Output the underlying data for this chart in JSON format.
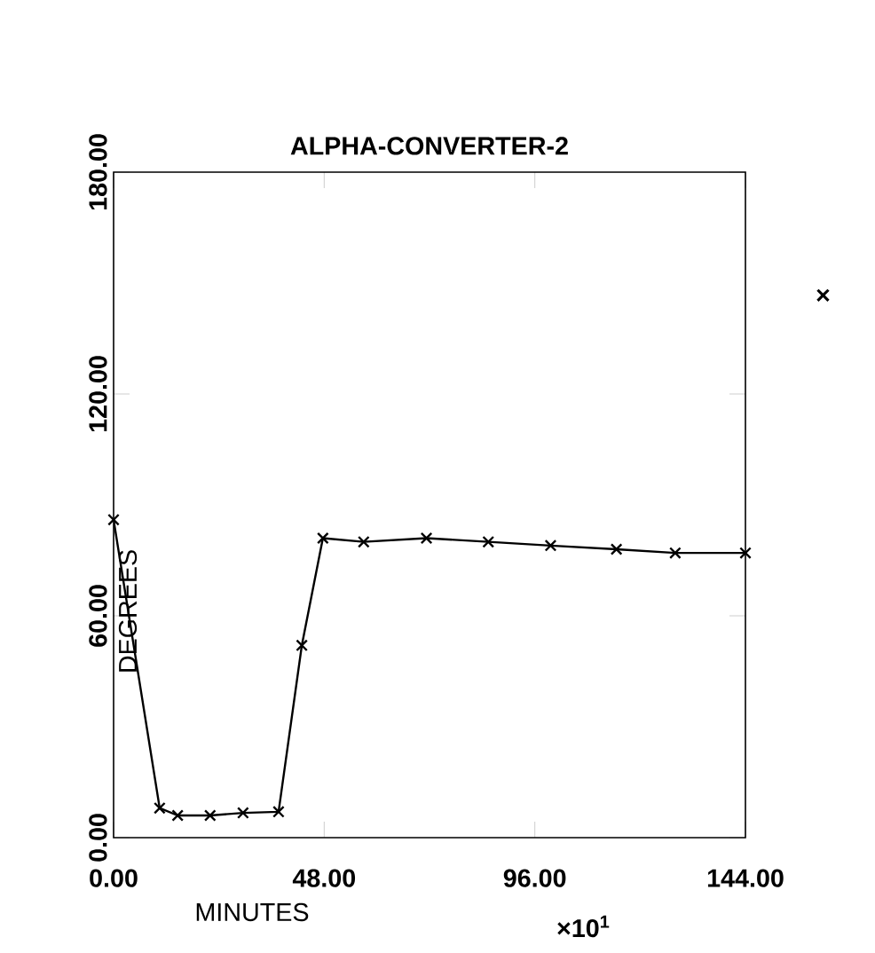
{
  "chart_data": {
    "type": "line",
    "title": "ALPHA-CONVERTER-2",
    "xlabel": "MINUTES",
    "ylabel": "DEGREES",
    "annotations": [
      "×10$^{1}$",
      "×"
    ],
    "x": [
      0,
      10.5,
      14.6,
      22,
      29.5,
      37.6,
      42.9,
      47.7,
      57,
      71.3,
      85.4,
      99.6,
      114.6,
      128,
      144
    ],
    "series": [
      {
        "color": "#000000",
        "values": [
          86,
          8,
          6,
          6,
          6.7,
          7,
          52,
          81,
          80,
          81,
          80,
          79,
          78,
          77,
          77
        ]
      }
    ],
    "xlim": [
      0,
      144
    ],
    "ylim": [
      0,
      180
    ],
    "xticks": [
      {
        "value": 0,
        "label": "0.00"
      },
      {
        "value": 48,
        "label": "48.00"
      },
      {
        "value": 96,
        "label": "96.00"
      },
      {
        "value": 144,
        "label": "144.00"
      }
    ],
    "yticks": [
      {
        "value": 0,
        "label": "0.00"
      },
      {
        "value": 60,
        "label": "60.00"
      },
      {
        "value": 120,
        "label": "120.00"
      },
      {
        "value": 180,
        "label": "180.00"
      }
    ],
    "marker": "cross",
    "line_style": "solid",
    "grid": false
  }
}
